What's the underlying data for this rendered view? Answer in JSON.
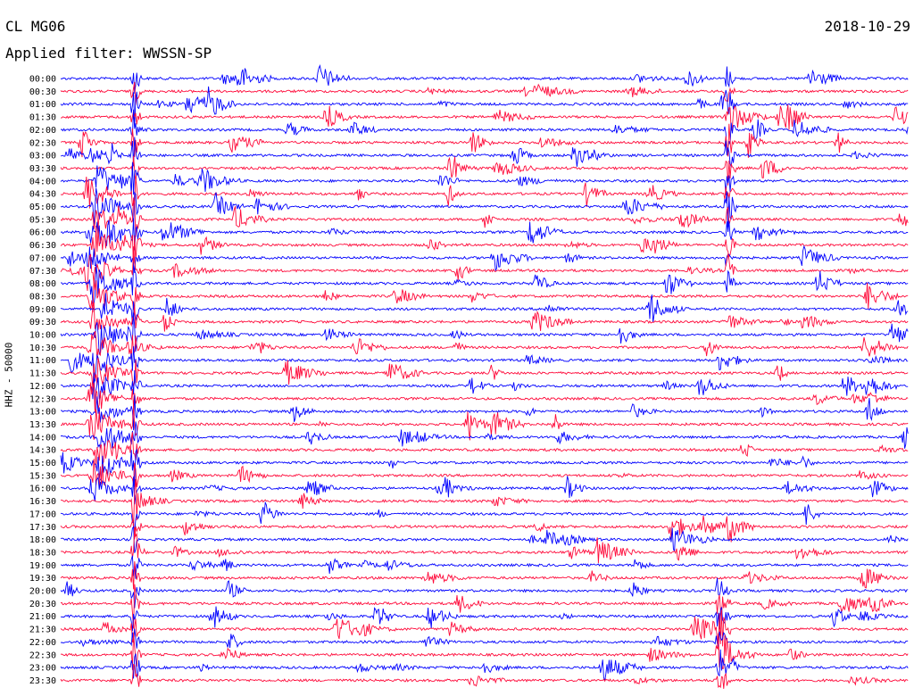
{
  "header": {
    "station": "CL MG06",
    "filter": "Applied filter: WWSSN-SP",
    "date": "2018-10-29"
  },
  "chart_data": {
    "type": "line",
    "ylabel": "HHZ - 50000",
    "row_labels": [
      "00:00",
      "00:30",
      "01:00",
      "01:30",
      "02:00",
      "02:30",
      "03:00",
      "03:30",
      "04:00",
      "04:30",
      "05:00",
      "05:30",
      "06:00",
      "06:30",
      "07:00",
      "07:30",
      "08:00",
      "08:30",
      "09:00",
      "09:30",
      "10:00",
      "10:30",
      "11:00",
      "11:30",
      "12:00",
      "12:30",
      "13:00",
      "13:30",
      "14:00",
      "14:30",
      "15:00",
      "15:30",
      "16:00",
      "16:30",
      "17:00",
      "17:30",
      "18:00",
      "18:30",
      "19:00",
      "19:30",
      "20:00",
      "20:30",
      "21:00",
      "21:30",
      "22:00",
      "22:30",
      "23:00",
      "23:30"
    ],
    "colors": {
      "even_trace": "#0000ff",
      "odd_trace": "#ff0a3a"
    },
    "trace_pattern": "alternating blue/red seismogram traces, one per 30-minute row, dense with bursts"
  }
}
